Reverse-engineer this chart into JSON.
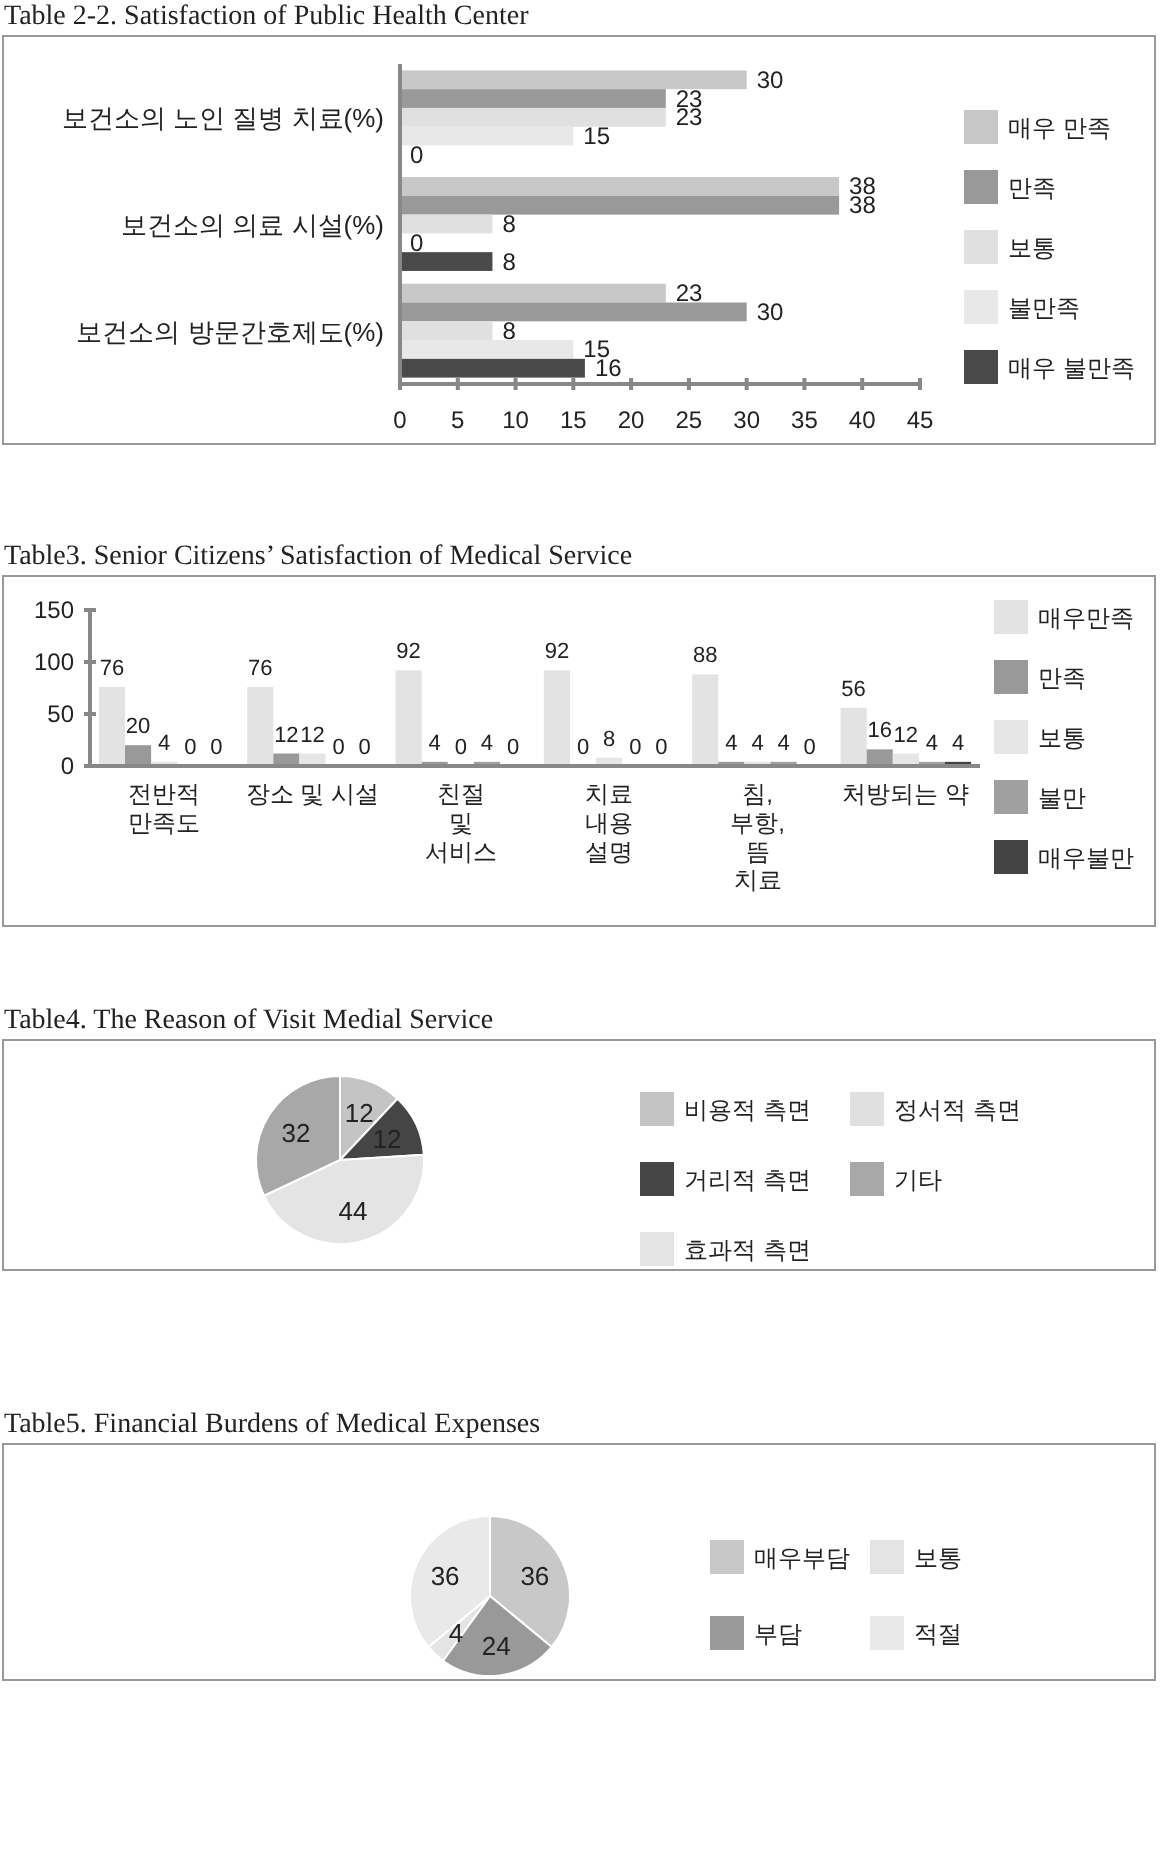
{
  "chart_data": [
    {
      "type": "bar",
      "orientation": "horizontal",
      "title": "Table 2-2. Satisfaction of Public Health Center",
      "categories": [
        "보건소의 노인 질병 치료(%)",
        "보건소의 의료 시설(%)",
        "보건소의 방문간호제도(%)"
      ],
      "series": [
        {
          "name": "매우 만족",
          "color": "#c8c8c8",
          "values": [
            30,
            38,
            23
          ]
        },
        {
          "name": "만족",
          "color": "#999999",
          "values": [
            23,
            38,
            30
          ]
        },
        {
          "name": "보통",
          "color": "#e0e0e0",
          "values": [
            23,
            8,
            8
          ]
        },
        {
          "name": "불만족",
          "color": "#e8e8e8",
          "values": [
            15,
            0,
            15
          ]
        },
        {
          "name": "매우 불만족",
          "color": "#4a4a4a",
          "values": [
            0,
            8,
            16
          ]
        }
      ],
      "xlim": [
        0,
        45
      ],
      "xticks": [
        0,
        5,
        10,
        15,
        20,
        25,
        30,
        35,
        40,
        45
      ],
      "data_labels": true,
      "legend": "right"
    },
    {
      "type": "bar",
      "title": "Table3. Senior Citizens’ Satisfaction of Medical Service",
      "categories": [
        "전반적\n만족도",
        "장소 및 시설",
        "친절\n및\n서비스",
        "치료\n내용\n설명",
        "침,\n부항,\n뜸\n치료",
        "처방되는 약"
      ],
      "series": [
        {
          "name": "매우만족",
          "color": "#e3e3e3",
          "values": [
            76,
            76,
            92,
            92,
            88,
            56
          ]
        },
        {
          "name": "만족",
          "color": "#999999",
          "values": [
            20,
            12,
            4,
            0,
            4,
            16
          ]
        },
        {
          "name": "보통",
          "color": "#e6e6e6",
          "values": [
            4,
            12,
            0,
            8,
            4,
            12
          ]
        },
        {
          "name": "불만",
          "color": "#a0a0a0",
          "values": [
            0,
            0,
            4,
            0,
            4,
            4
          ]
        },
        {
          "name": "매우불만",
          "color": "#444444",
          "values": [
            0,
            0,
            0,
            0,
            0,
            4
          ]
        }
      ],
      "ylim": [
        0,
        150
      ],
      "yticks": [
        0,
        50,
        100,
        150
      ],
      "data_labels": true,
      "legend": "right"
    },
    {
      "type": "pie",
      "title": "Table4. The Reason of Visit Medial Service",
      "categories": [
        "비용적 측면",
        "거리적 측면",
        "효과적 측면",
        "정서적 측면",
        "기타"
      ],
      "values": [
        12,
        12,
        44,
        0,
        32
      ],
      "value_labels": [
        "12",
        "12",
        "44",
        null,
        "32"
      ],
      "colors": [
        "#c4c4c4",
        "#454545",
        "#e4e4e4",
        "#e0e0e0",
        "#a8a8a8"
      ],
      "legend": "right"
    },
    {
      "type": "pie",
      "title": "Table5. Financial Burdens of Medical Expenses",
      "categories": [
        "매우부담",
        "부담",
        "보통",
        "적절"
      ],
      "values": [
        36,
        24,
        4,
        36
      ],
      "colors": [
        "#c8c8c8",
        "#999999",
        "#e4e4e4",
        "#e9e9e9"
      ],
      "data_labels": true,
      "legend": "right"
    }
  ]
}
